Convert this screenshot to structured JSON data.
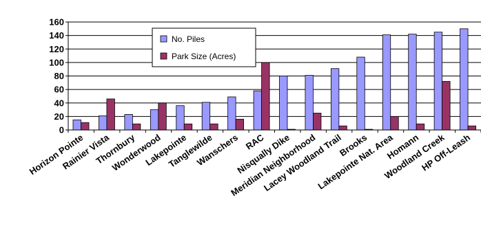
{
  "chart_data": {
    "type": "bar",
    "categories": [
      "Horizon Pointe",
      "Rainier Vista",
      "Thornbury",
      "Wonderwood",
      "Lakepointe",
      "Tanglewilde",
      "Wanschers",
      "RAC",
      "Nisqually Dike",
      "Meridian Neighborhood",
      "Lacey Woodland Trail",
      "Brooks",
      "Lakepointe Nat. Area",
      "Homann",
      "Woodland Creek",
      "HP Off-Leash"
    ],
    "series": [
      {
        "name": "No. Piles",
        "color": "#9999ff",
        "values": [
          15,
          21,
          23,
          30,
          36,
          41,
          49,
          58,
          80,
          81,
          91,
          108,
          141,
          142,
          145,
          150
        ]
      },
      {
        "name": "Park Size (Acres)",
        "color": "#993366",
        "values": [
          11,
          46,
          9,
          40,
          9,
          9,
          16,
          100,
          1,
          25,
          6,
          1,
          20,
          9,
          72,
          6
        ]
      }
    ],
    "yticks": [
      "0",
      "20",
      "40",
      "60",
      "80",
      "100",
      "120",
      "140",
      "160"
    ],
    "ylim": [
      0,
      160
    ],
    "grid": true,
    "legend_position": "top-left-inside"
  }
}
